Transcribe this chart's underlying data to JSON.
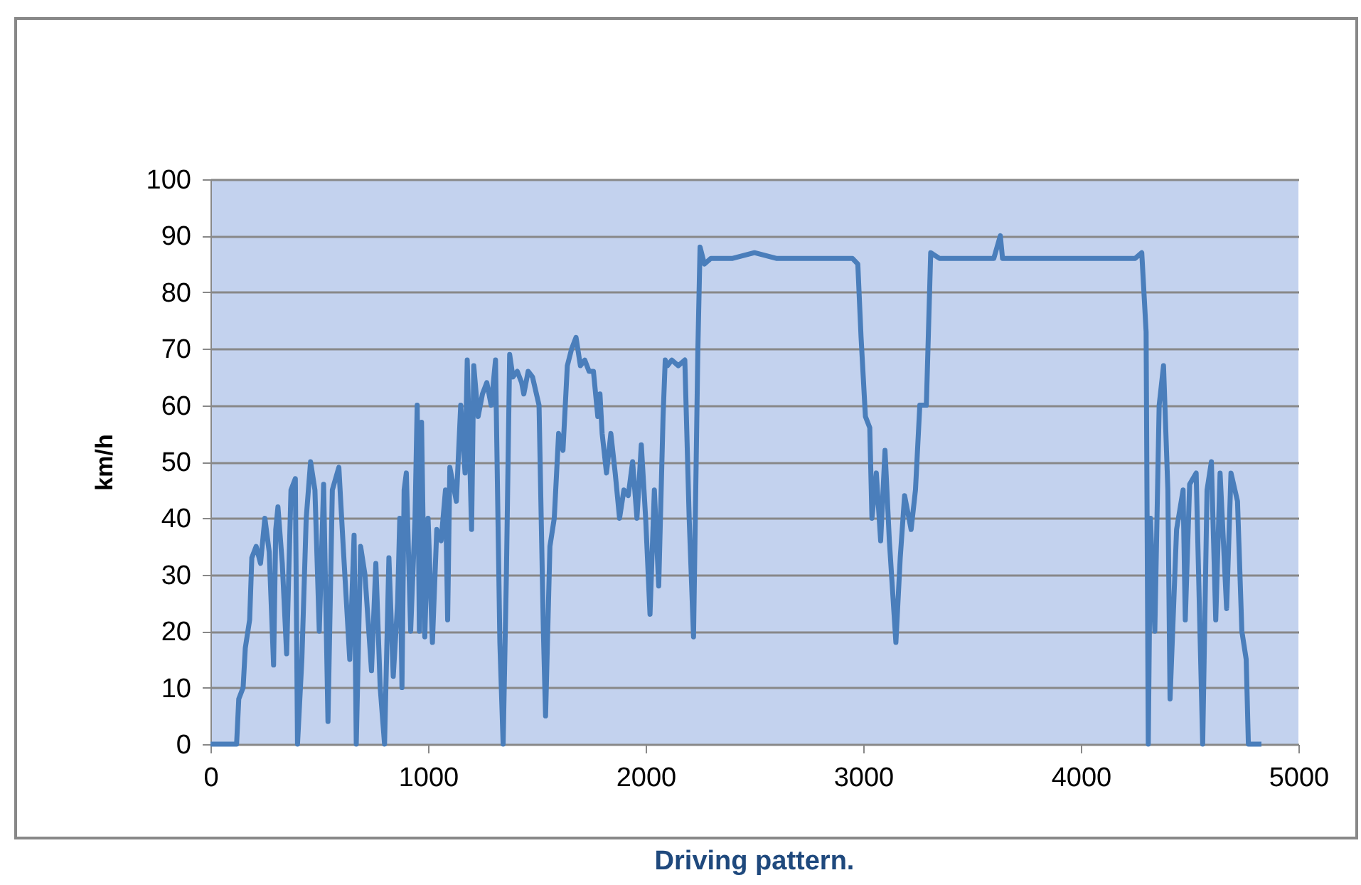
{
  "chart_data": {
    "type": "line",
    "title": "Driving pattern.",
    "ylabel": "km/h",
    "x": [
      0,
      120,
      130,
      150,
      160,
      180,
      190,
      210,
      230,
      250,
      270,
      290,
      300,
      310,
      330,
      350,
      370,
      390,
      400,
      420,
      440,
      460,
      480,
      500,
      520,
      540,
      560,
      590,
      610,
      640,
      660,
      670,
      690,
      710,
      740,
      760,
      780,
      800,
      820,
      840,
      860,
      870,
      880,
      890,
      900,
      920,
      940,
      950,
      960,
      970,
      985,
      1000,
      1020,
      1040,
      1060,
      1080,
      1090,
      1100,
      1130,
      1150,
      1170,
      1180,
      1200,
      1210,
      1230,
      1250,
      1270,
      1290,
      1310,
      1330,
      1345,
      1360,
      1375,
      1390,
      1410,
      1430,
      1440,
      1460,
      1480,
      1510,
      1530,
      1540,
      1560,
      1580,
      1600,
      1620,
      1640,
      1660,
      1680,
      1700,
      1720,
      1740,
      1760,
      1780,
      1790,
      1800,
      1820,
      1840,
      1860,
      1880,
      1900,
      1920,
      1940,
      1960,
      1980,
      2000,
      2020,
      2040,
      2060,
      2080,
      2090,
      2100,
      2120,
      2150,
      2180,
      2200,
      2220,
      2240,
      2250,
      2270,
      2300,
      2400,
      2500,
      2600,
      2700,
      2800,
      2900,
      2950,
      2975,
      2990,
      3010,
      3030,
      3040,
      3060,
      3080,
      3100,
      3120,
      3150,
      3170,
      3190,
      3220,
      3240,
      3260,
      3290,
      3310,
      3350,
      3500,
      3600,
      3630,
      3640,
      3800,
      4000,
      4250,
      4280,
      4300,
      4310,
      4320,
      4340,
      4360,
      4380,
      4400,
      4410,
      4440,
      4470,
      4480,
      4500,
      4530,
      4560,
      4580,
      4600,
      4620,
      4640,
      4670,
      4690,
      4720,
      4740,
      4760,
      4770,
      4830
    ],
    "series": [
      {
        "color": "#4a7ebb",
        "values": [
          0,
          0,
          8,
          10,
          17,
          22,
          33,
          35,
          32,
          40,
          34,
          14,
          38,
          42,
          32,
          16,
          45,
          47,
          0,
          15,
          40,
          50,
          45,
          20,
          46,
          4,
          45,
          49,
          35,
          15,
          37,
          0,
          35,
          30,
          13,
          32,
          10,
          0,
          33,
          12,
          25,
          40,
          10,
          45,
          48,
          20,
          40,
          60,
          20,
          57,
          19,
          40,
          18,
          38,
          36,
          45,
          22,
          49,
          43,
          60,
          48,
          68,
          38,
          67,
          58,
          62,
          64,
          60,
          68,
          18,
          0,
          30,
          69,
          65,
          66,
          64,
          62,
          66,
          65,
          60,
          20,
          5,
          35,
          40,
          55,
          52,
          67,
          70,
          72,
          67,
          68,
          66,
          66,
          58,
          62,
          55,
          48,
          55,
          48,
          40,
          45,
          44,
          50,
          40,
          53,
          40,
          23,
          45,
          28,
          58,
          68,
          67,
          68,
          67,
          68,
          40,
          19,
          70,
          88,
          85,
          86,
          86,
          87,
          86,
          86,
          86,
          86,
          86,
          85,
          72,
          58,
          56,
          40,
          48,
          36,
          52,
          36,
          18,
          33,
          44,
          38,
          45,
          60,
          60,
          87,
          86,
          86,
          86,
          90,
          86,
          86,
          86,
          86,
          87,
          73,
          0,
          40,
          20,
          60,
          67,
          45,
          8,
          38,
          45,
          22,
          46,
          48,
          0,
          45,
          50,
          22,
          48,
          24,
          48,
          43,
          20,
          15,
          0,
          0
        ]
      }
    ],
    "xlim": [
      0,
      5000
    ],
    "xticks": [
      0,
      {
        "value": 1000,
        "label": "1000"
      },
      {
        "value": 2000,
        "label": "2000"
      },
      {
        "value": 3000,
        "label": "3000"
      },
      {
        "value": 4000,
        "label": "4000"
      },
      {
        "value": 5000,
        "label": "5000"
      }
    ],
    "ylim": [
      0,
      100
    ],
    "yticks": [
      0,
      10,
      20,
      30,
      40,
      50,
      60,
      70,
      80,
      90,
      100
    ],
    "grid": "y",
    "legend": false
  }
}
